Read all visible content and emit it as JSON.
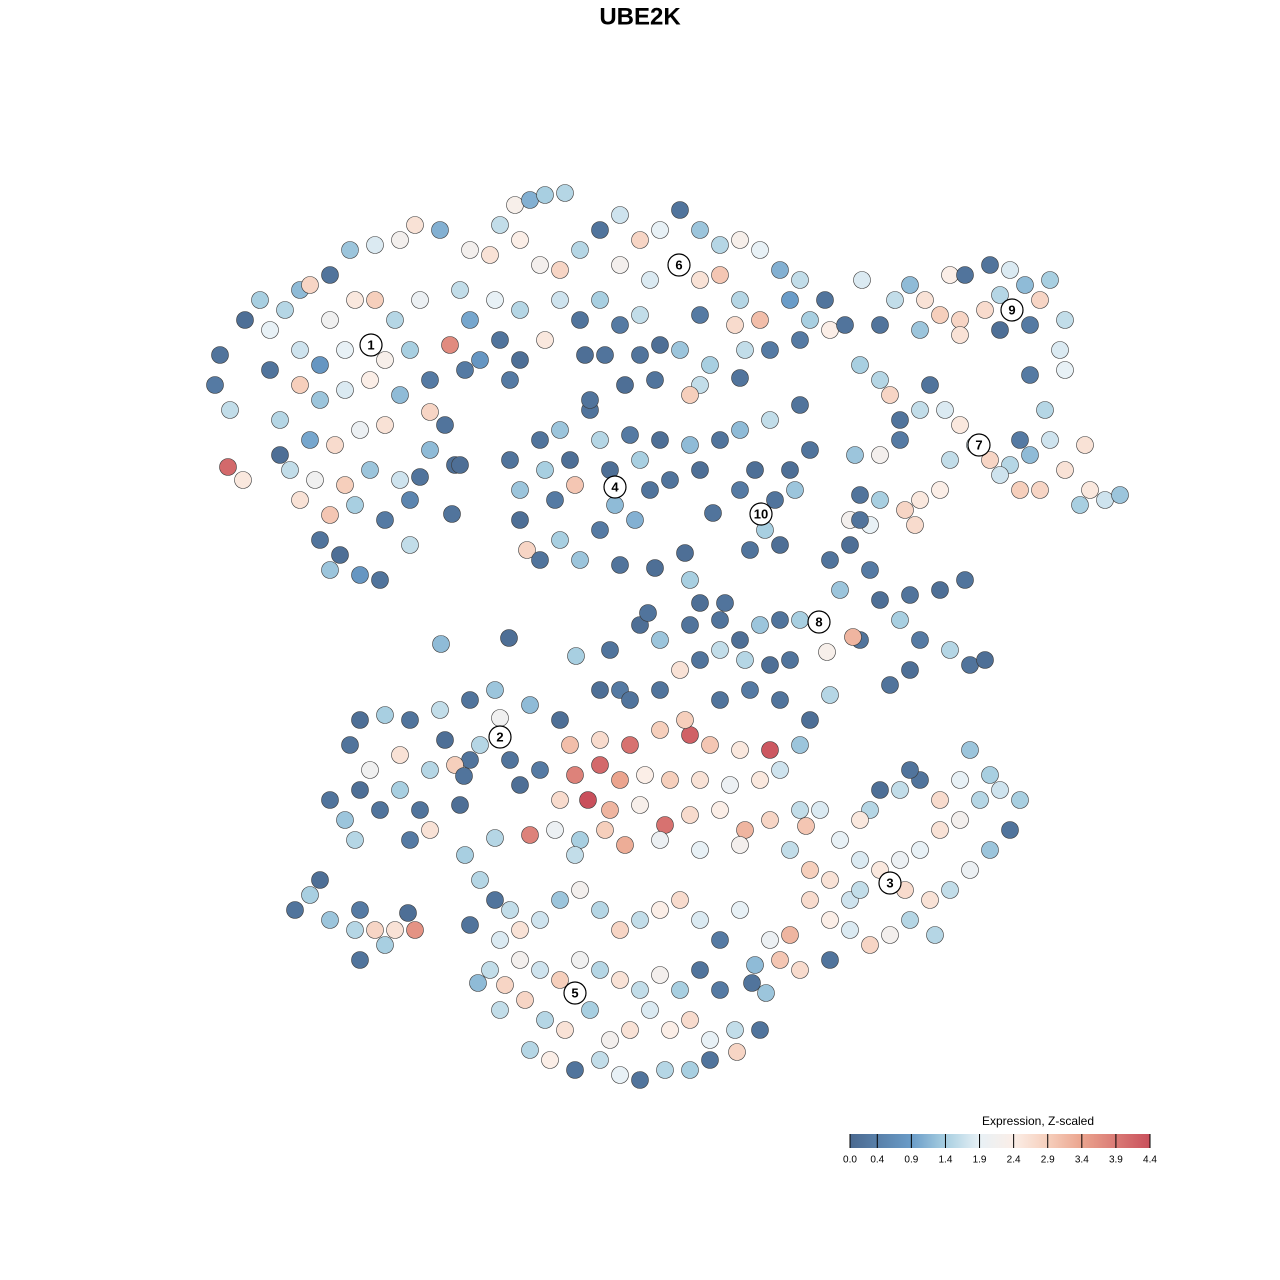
{
  "chart_data": {
    "type": "scatter",
    "title": "UBE2K",
    "xlim": [
      190,
      1130
    ],
    "ylim": [
      1100,
      180
    ],
    "x": [
      220,
      215,
      230,
      228,
      243,
      245,
      260,
      270,
      285,
      300,
      310,
      330,
      350,
      375,
      400,
      415,
      440,
      330,
      355,
      375,
      395,
      420,
      450,
      300,
      320,
      345,
      385,
      410,
      270,
      300,
      320,
      345,
      370,
      400,
      430,
      280,
      310,
      335,
      360,
      385,
      430,
      290,
      315,
      345,
      370,
      400,
      280,
      300,
      330,
      355,
      385,
      410,
      320,
      340,
      360,
      380,
      410,
      330,
      470,
      460,
      465,
      445,
      430,
      455,
      480,
      500,
      495,
      520,
      510,
      470,
      490,
      500,
      515,
      530,
      545,
      565,
      520,
      540,
      560,
      580,
      600,
      620,
      640,
      660,
      680,
      700,
      720,
      740,
      760,
      780,
      800,
      825,
      620,
      650,
      700,
      720,
      740,
      760,
      790,
      600,
      580,
      620,
      640,
      560,
      545,
      520,
      700,
      735,
      810,
      830,
      845,
      680,
      700,
      690,
      710,
      660,
      640,
      605,
      585,
      745,
      770,
      800,
      740,
      862,
      880,
      895,
      910,
      925,
      940,
      950,
      965,
      960,
      985,
      1000,
      1010,
      1025,
      1040,
      1050,
      1065,
      1030,
      1000,
      960,
      920,
      990,
      1060,
      1065,
      1030,
      860,
      880,
      890,
      900,
      920,
      945,
      960,
      975,
      990,
      1010,
      1030,
      1050,
      1065,
      1085,
      1090,
      1105,
      1120,
      1080,
      1040,
      1020,
      1000,
      950,
      940,
      920,
      905,
      880,
      860,
      850,
      870,
      915,
      880,
      855,
      900,
      1045,
      1020,
      930,
      510,
      520,
      520,
      540,
      545,
      555,
      527,
      540,
      560,
      570,
      575,
      590,
      600,
      610,
      615,
      600,
      630,
      640,
      635,
      650,
      660,
      670,
      620,
      580,
      560,
      590,
      625,
      655,
      690,
      700,
      720,
      740,
      770,
      800,
      460,
      452,
      420,
      740,
      755,
      775,
      790,
      765,
      750,
      780,
      795,
      810,
      713,
      685,
      690,
      655,
      830,
      840,
      850,
      860,
      870,
      880,
      900,
      910,
      940,
      965,
      920,
      950,
      970,
      985,
      890,
      910,
      860,
      853,
      827,
      800,
      780,
      760,
      740,
      720,
      700,
      725,
      690,
      660,
      680,
      700,
      720,
      745,
      770,
      790,
      640,
      648,
      509,
      441,
      576,
      610,
      620,
      660,
      330,
      345,
      360,
      380,
      400,
      420,
      410,
      430,
      355,
      370,
      350,
      360,
      385,
      410,
      440,
      470,
      495,
      445,
      470,
      455,
      480,
      510,
      520,
      400,
      430,
      464,
      540,
      560,
      530,
      500,
      460,
      465,
      495,
      295,
      310,
      320,
      330,
      355,
      375,
      360,
      385,
      395,
      408,
      415,
      360,
      570,
      600,
      630,
      660,
      690,
      710,
      740,
      770,
      575,
      600,
      620,
      645,
      670,
      700,
      730,
      760,
      780,
      560,
      588,
      610,
      640,
      665,
      690,
      720,
      745,
      770,
      800,
      530,
      555,
      580,
      605,
      625,
      660,
      700,
      740,
      685,
      720,
      600,
      630,
      750,
      780,
      810,
      830,
      800,
      806,
      575,
      790,
      810,
      830,
      860,
      880,
      900,
      920,
      940,
      960,
      980,
      1000,
      1020,
      1010,
      990,
      970,
      950,
      930,
      910,
      890,
      870,
      850,
      830,
      810,
      790,
      780,
      800,
      770,
      850,
      870,
      900,
      920,
      940,
      960,
      990,
      970,
      910,
      880,
      860,
      840,
      820,
      905,
      935,
      860,
      830,
      755,
      480,
      495,
      510,
      500,
      520,
      540,
      560,
      580,
      600,
      620,
      640,
      660,
      680,
      700,
      720,
      740,
      490,
      505,
      520,
      540,
      560,
      580,
      600,
      620,
      640,
      660,
      680,
      700,
      720,
      500,
      525,
      545,
      565,
      590,
      610,
      630,
      650,
      670,
      690,
      710,
      735,
      760,
      737,
      530,
      550,
      575,
      600,
      620,
      640,
      665,
      690,
      710,
      470,
      752,
      766,
      478
    ],
    "y": [
      355,
      385,
      410,
      467,
      480,
      320,
      300,
      330,
      310,
      290,
      285,
      275,
      250,
      245,
      240,
      225,
      230,
      320,
      300,
      300,
      320,
      300,
      345,
      350,
      365,
      350,
      360,
      350,
      370,
      385,
      400,
      390,
      380,
      395,
      380,
      420,
      440,
      445,
      430,
      425,
      412,
      470,
      480,
      485,
      470,
      480,
      455,
      500,
      515,
      505,
      520,
      500,
      540,
      555,
      575,
      580,
      545,
      570,
      320,
      290,
      370,
      425,
      450,
      465,
      360,
      340,
      300,
      360,
      380,
      250,
      255,
      225,
      205,
      200,
      195,
      193,
      240,
      265,
      270,
      250,
      230,
      215,
      240,
      230,
      210,
      230,
      245,
      240,
      250,
      270,
      280,
      300,
      265,
      280,
      280,
      275,
      300,
      320,
      300,
      300,
      320,
      325,
      315,
      300,
      340,
      310,
      315,
      325,
      320,
      330,
      325,
      350,
      385,
      395,
      365,
      345,
      355,
      355,
      355,
      350,
      350,
      340,
      378,
      280,
      325,
      300,
      285,
      300,
      315,
      275,
      275,
      320,
      310,
      295,
      270,
      285,
      300,
      280,
      320,
      325,
      330,
      335,
      330,
      265,
      350,
      370,
      375,
      365,
      380,
      395,
      420,
      410,
      410,
      425,
      445,
      460,
      465,
      455,
      440,
      470,
      445,
      490,
      500,
      495,
      505,
      490,
      490,
      475,
      460,
      490,
      500,
      510,
      500,
      495,
      520,
      525,
      525,
      455,
      455,
      440,
      410,
      440,
      385,
      460,
      490,
      520,
      440,
      470,
      500,
      550,
      560,
      430,
      460,
      485,
      410,
      440,
      470,
      505,
      530,
      435,
      460,
      520,
      490,
      440,
      480,
      565,
      560,
      540,
      400,
      385,
      380,
      445,
      470,
      440,
      430,
      420,
      405,
      465,
      514,
      477,
      490,
      470,
      500,
      470,
      530,
      550,
      545,
      490,
      450,
      513,
      553,
      580,
      568,
      560,
      590,
      545,
      520,
      570,
      600,
      620,
      595,
      590,
      580,
      640,
      650,
      665,
      660,
      685,
      670,
      640,
      637,
      652,
      620,
      620,
      625,
      640,
      620,
      603,
      603,
      625,
      640,
      670,
      660,
      650,
      660,
      665,
      660,
      625,
      613,
      638,
      644,
      656,
      650,
      690,
      690,
      800,
      820,
      790,
      810,
      790,
      810,
      840,
      830,
      840,
      770,
      745,
      720,
      715,
      720,
      710,
      700,
      690,
      740,
      760,
      765,
      745,
      760,
      785,
      755,
      770,
      776,
      770,
      720,
      705,
      718,
      805,
      855,
      838,
      910,
      895,
      880,
      920,
      930,
      930,
      960,
      945,
      930,
      913,
      930,
      910,
      745,
      740,
      745,
      730,
      735,
      745,
      750,
      750,
      775,
      765,
      780,
      775,
      780,
      780,
      785,
      780,
      770,
      800,
      800,
      810,
      805,
      825,
      815,
      810,
      830,
      820,
      810,
      835,
      830,
      840,
      830,
      845,
      840,
      850,
      845,
      720,
      700,
      690,
      700,
      690,
      700,
      720,
      695,
      745,
      826,
      855,
      850,
      870,
      880,
      860,
      870,
      860,
      850,
      830,
      820,
      800,
      790,
      800,
      830,
      850,
      870,
      890,
      900,
      920,
      935,
      945,
      930,
      920,
      900,
      935,
      960,
      970,
      940,
      900,
      810,
      790,
      780,
      800,
      780,
      775,
      750,
      770,
      790,
      820,
      840,
      810,
      890,
      935,
      890,
      960,
      965,
      880,
      900,
      910,
      940,
      930,
      920,
      900,
      890,
      910,
      930,
      920,
      910,
      900,
      920,
      940,
      910,
      970,
      985,
      960,
      970,
      980,
      960,
      970,
      980,
      990,
      975,
      990,
      970,
      990,
      1010,
      1000,
      1020,
      1030,
      1010,
      1040,
      1030,
      1010,
      1030,
      1020,
      1040,
      1030,
      1030,
      1052,
      1050,
      1060,
      1070,
      1060,
      1075,
      1080,
      1070,
      1070,
      1060,
      925,
      983,
      993,
      983
    ],
    "values": [
      0.2,
      0.3,
      1.6,
      4.1,
      2.5,
      0.1,
      1.4,
      1.9,
      1.5,
      1.2,
      2.8,
      0.2,
      1.3,
      1.8,
      2.2,
      2.6,
      1.1,
      2.1,
      2.5,
      2.9,
      1.5,
      2.0,
      3.7,
      1.7,
      0.8,
      1.9,
      2.3,
      1.4,
      0.2,
      2.9,
      1.3,
      1.8,
      2.4,
      1.2,
      0.3,
      1.5,
      1.0,
      2.7,
      2.0,
      2.6,
      2.8,
      1.6,
      2.1,
      2.9,
      1.3,
      1.7,
      0.1,
      2.6,
      3.0,
      1.4,
      0.3,
      0.5,
      0.2,
      0.1,
      0.8,
      0.2,
      1.6,
      1.3,
      1.0,
      1.6,
      0.3,
      0.2,
      1.2,
      0.1,
      0.8,
      0.2,
      1.9,
      0.1,
      0.3,
      2.2,
      2.6,
      1.6,
      2.3,
      1.1,
      1.4,
      1.5,
      2.4,
      2.2,
      2.8,
      1.5,
      0.2,
      1.7,
      2.8,
      1.9,
      0.2,
      1.3,
      1.5,
      2.3,
      1.9,
      1.1,
      1.6,
      0.2,
      2.2,
      1.8,
      2.6,
      3.0,
      1.5,
      3.1,
      0.9,
      1.4,
      0.2,
      0.3,
      1.6,
      1.7,
      2.5,
      1.5,
      0.3,
      2.7,
      1.4,
      2.4,
      0.2,
      1.3,
      1.6,
      2.9,
      1.4,
      0.1,
      0.2,
      0.2,
      0.1,
      1.6,
      0.3,
      0.3,
      0.2,
      1.8,
      0.2,
      1.6,
      1.2,
      2.6,
      2.9,
      2.4,
      0.2,
      2.8,
      2.7,
      1.5,
      1.8,
      1.2,
      2.8,
      1.4,
      1.6,
      0.3,
      0.1,
      2.6,
      1.3,
      0.2,
      1.8,
      1.9,
      0.3,
      1.4,
      1.5,
      2.8,
      0.2,
      1.6,
      1.8,
      2.5,
      1.7,
      2.8,
      1.5,
      1.2,
      1.7,
      2.6,
      2.6,
      2.5,
      1.7,
      1.3,
      1.4,
      2.8,
      2.9,
      1.7,
      1.6,
      2.4,
      2.5,
      2.8,
      1.4,
      0.2,
      2.2,
      1.9,
      2.7,
      2.2,
      1.3,
      0.3,
      1.5,
      0.3,
      0.2,
      0.2,
      1.3,
      0.1,
      0.2,
      1.4,
      0.3,
      2.8,
      0.2,
      1.3,
      0.1,
      3.0,
      0.2,
      1.5,
      0.1,
      1.2,
      0.3,
      0.3,
      1.4,
      1.1,
      0.2,
      0.1,
      0.2,
      0.2,
      1.3,
      1.4,
      0.2,
      0.1,
      0.2,
      1.2,
      0.1,
      0.2,
      1.2,
      1.6,
      0.2,
      0.1,
      0.2,
      0.2,
      0.3,
      0.1,
      0.2,
      0.1,
      1.4,
      0.2,
      0.1,
      1.3,
      0.2,
      0.2,
      0.1,
      1.4,
      0.1,
      0.2,
      1.3,
      0.1,
      0.2,
      0.3,
      0.1,
      1.4,
      0.2,
      0.1,
      0.2,
      0.3,
      1.5,
      0.2,
      0.1,
      0.2,
      0.1,
      0.2,
      3.2,
      2.3,
      1.4,
      0.2,
      1.3,
      0.1,
      0.2,
      0.1,
      0.2,
      0.2,
      1.3,
      2.6,
      0.2,
      1.6,
      1.5,
      0.1,
      0.2,
      0.1,
      0.2,
      0.1,
      1.2,
      1.4,
      0.2,
      0.3,
      0.2,
      0.2,
      1.3,
      0.1,
      0.2,
      1.4,
      0.2,
      0.3,
      2.6,
      1.5,
      2.1,
      0.2,
      0.1,
      1.4,
      0.2,
      1.6,
      0.2,
      1.3,
      0.1,
      0.2,
      2.9,
      1.5,
      0.2,
      0.1,
      2.6,
      1.5,
      0.2,
      0.3,
      0.1,
      1.2,
      2.1,
      0.1,
      1.4,
      1.5,
      0.2,
      1.4,
      0.1,
      1.3,
      1.5,
      2.8,
      0.2,
      1.4,
      2.6,
      0.1,
      3.6,
      0.3,
      3.1,
      2.7,
      4.0,
      2.9,
      4.2,
      3.0,
      2.5,
      4.3,
      3.8,
      4.1,
      3.4,
      2.4,
      2.9,
      2.6,
      2.0,
      2.5,
      1.7,
      2.7,
      4.4,
      3.2,
      2.3,
      4.0,
      2.7,
      2.4,
      3.2,
      2.8,
      1.6,
      3.8,
      2.0,
      1.4,
      2.9,
      3.3,
      2.0,
      1.9,
      2.2,
      2.9,
      0.2,
      0.1,
      0.2,
      0.3,
      0.2,
      0.1,
      1.5,
      1.3,
      3.0,
      1.6,
      1.6,
      2.9,
      2.6,
      1.8,
      2.5,
      2.0,
      1.9,
      2.6,
      2.2,
      1.5,
      1.7,
      1.4,
      0.2,
      1.3,
      2.0,
      1.6,
      2.6,
      1.5,
      2.2,
      2.8,
      1.8,
      2.4,
      2.7,
      3.2,
      3.0,
      2.7,
      2.0,
      1.7,
      1.5,
      1.6,
      0.2,
      2.7,
      1.9,
      1.4,
      1.3,
      0.2,
      0.1,
      2.5,
      1.9,
      1.8,
      2.7,
      1.5,
      1.6,
      0.2,
      1.2,
      1.5,
      0.2,
      1.6,
      1.8,
      2.6,
      1.7,
      1.3,
      2.2,
      1.5,
      2.8,
      1.6,
      2.4,
      2.7,
      1.8,
      0.3,
      1.9,
      1.6,
      2.8,
      2.2,
      1.7,
      2.9,
      2.1,
      1.5,
      2.6,
      1.6,
      2.2,
      1.4,
      0.2,
      0.3,
      1.6,
      2.8,
      1.5,
      2.6,
      1.4,
      2.2,
      2.6,
      1.8,
      2.4,
      2.7,
      1.9,
      1.6,
      0.2,
      2.8,
      1.5,
      2.4,
      0.2,
      1.6,
      1.9,
      0.2,
      1.5,
      1.4,
      0.2,
      0.2,
      0.2,
      1.3,
      1.2
    ],
    "clusters": {
      "labels": [
        "1",
        "2",
        "3",
        "4",
        "5",
        "6",
        "7",
        "8",
        "9",
        "10"
      ],
      "x": [
        371,
        500,
        890,
        615,
        575,
        679,
        979,
        819,
        1012,
        761
      ],
      "y": [
        345,
        737,
        883,
        487,
        993,
        265,
        445,
        622,
        310,
        514
      ]
    },
    "colorbar": {
      "title": "Expression, Z-scaled",
      "clim": [
        0,
        4.4
      ],
      "ticks": [
        {
          "value": 0,
          "label": "0.0"
        },
        0.4,
        0.9,
        1.4,
        1.9,
        2.4,
        2.9,
        3.4,
        3.9,
        4.4
      ],
      "colorscale": [
        {
          "value": 0,
          "color": "#4a6990"
        },
        {
          "value": 0.9,
          "color": "#6a9cc8"
        },
        {
          "value": 1.4,
          "color": "#a8cfe1"
        },
        {
          "value": 1.9,
          "color": "#e8f1f6"
        },
        {
          "value": 2.4,
          "color": "#fbeee7"
        },
        {
          "value": 2.9,
          "color": "#f6cfbc"
        },
        {
          "value": 3.4,
          "color": "#eba48e"
        },
        {
          "value": 4.4,
          "color": "#c9505c"
        }
      ]
    }
  }
}
